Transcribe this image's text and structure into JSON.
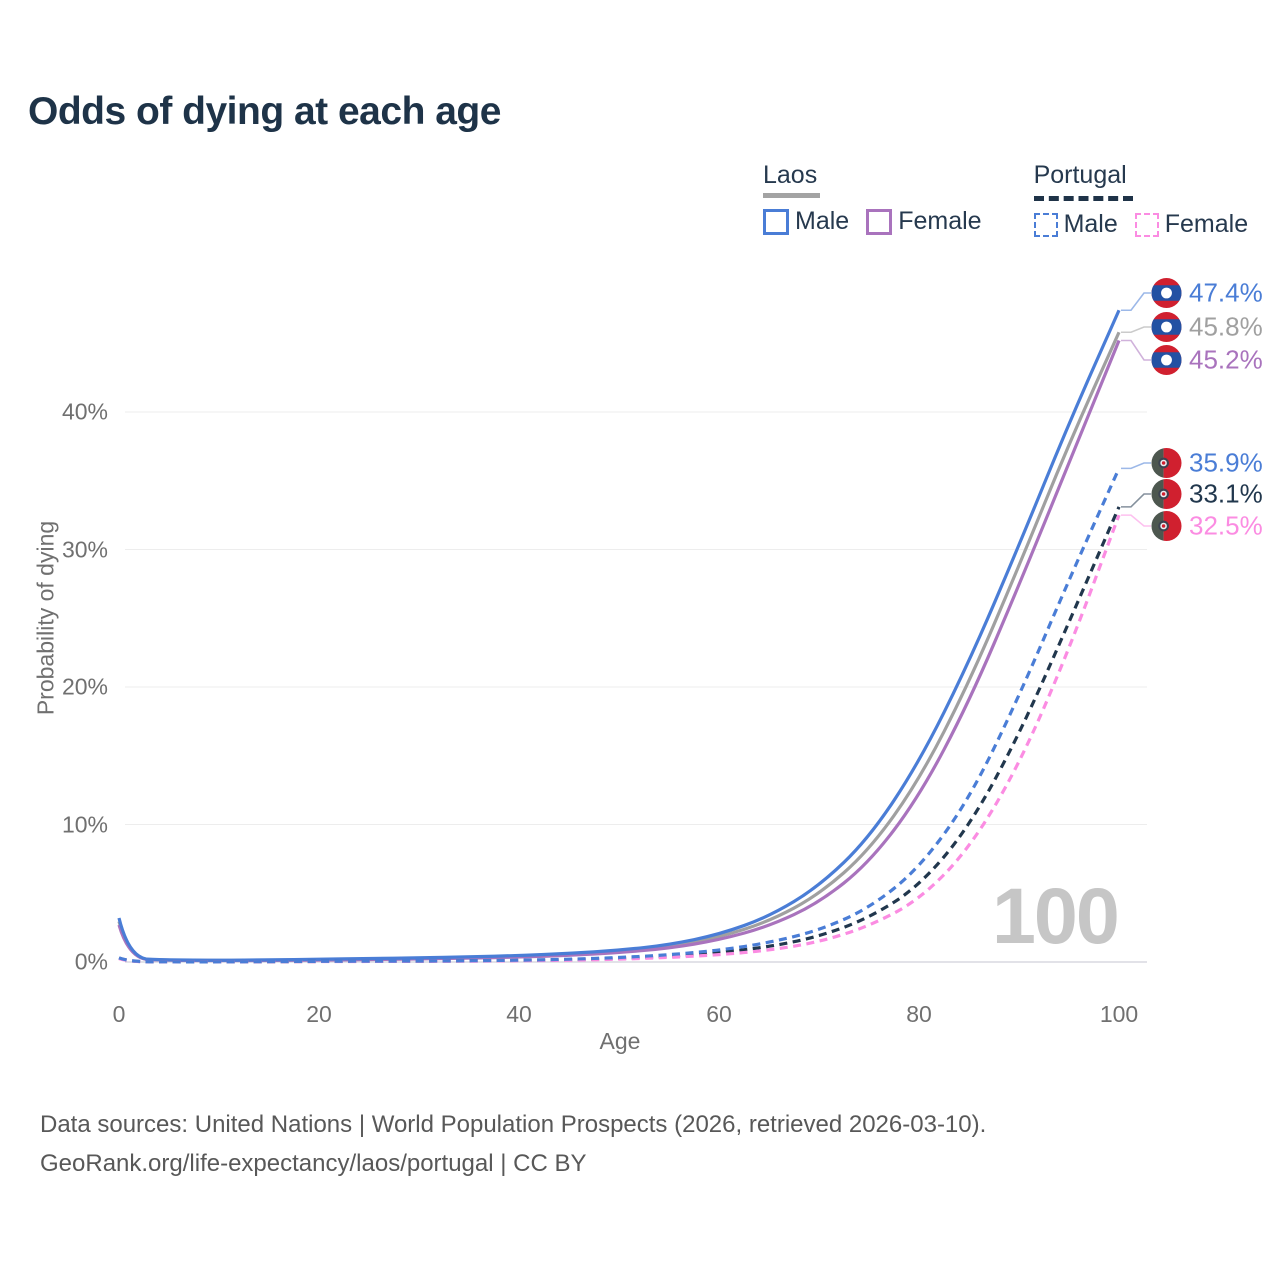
{
  "title": "Odds of dying at each age",
  "legend": {
    "groups": [
      {
        "name": "Laos",
        "line_style": "solid",
        "underline_color": "#a3a3a3",
        "items": [
          {
            "label": "Male",
            "color": "#4a7dd6",
            "style": "solid"
          },
          {
            "label": "Female",
            "color": "#a973bd",
            "style": "solid"
          }
        ]
      },
      {
        "name": "Portugal",
        "line_style": "dashed",
        "underline_color": "#1f3348",
        "items": [
          {
            "label": "Male",
            "color": "#4a7dd6",
            "style": "dashed"
          },
          {
            "label": "Female",
            "color": "#fb8ce2",
            "style": "dashed"
          }
        ]
      }
    ]
  },
  "chart_data": {
    "type": "line",
    "title": "Odds of dying at each age",
    "xlabel": "Age",
    "ylabel": "Probability of dying",
    "xlim": [
      0,
      100
    ],
    "ylim": [
      0,
      48
    ],
    "grid": "horizontal",
    "legend_position": "top-right",
    "watermark": "100",
    "x_ticks": [
      {
        "value": 0,
        "label": "0"
      },
      {
        "value": 20,
        "label": "20"
      },
      {
        "value": 40,
        "label": "40"
      },
      {
        "value": 60,
        "label": "60"
      },
      {
        "value": 80,
        "label": "80"
      },
      {
        "value": 100,
        "label": "100"
      }
    ],
    "y_ticks": [
      {
        "value": 0,
        "label": "0%"
      },
      {
        "value": 10,
        "label": "10%"
      },
      {
        "value": 20,
        "label": "20%"
      },
      {
        "value": 30,
        "label": "30%"
      },
      {
        "value": 40,
        "label": "40%"
      }
    ],
    "x": [
      0,
      1,
      5,
      10,
      15,
      20,
      25,
      30,
      35,
      40,
      45,
      50,
      55,
      60,
      65,
      70,
      75,
      80,
      85,
      90,
      95,
      100
    ],
    "series": [
      {
        "name": "Laos Male",
        "country": "Laos",
        "sex": "Male",
        "style": "solid",
        "color": "#4a7dd6",
        "end_label": "47.4%",
        "values": [
          3.2,
          0.25,
          0.15,
          0.12,
          0.15,
          0.2,
          0.25,
          0.3,
          0.37,
          0.47,
          0.62,
          0.85,
          1.25,
          2.0,
          3.3,
          5.5,
          9.0,
          14.5,
          21.8,
          30.3,
          39.2,
          47.4
        ]
      },
      {
        "name": "Laos Both sexes",
        "country": "Laos",
        "sex": "Both",
        "style": "solid",
        "color": "#a0a0a0",
        "end_label": "45.8%",
        "values": [
          2.95,
          0.24,
          0.13,
          0.11,
          0.13,
          0.17,
          0.21,
          0.26,
          0.32,
          0.41,
          0.55,
          0.77,
          1.12,
          1.8,
          2.95,
          4.9,
          8.1,
          13.2,
          20.3,
          28.8,
          37.7,
          45.8
        ]
      },
      {
        "name": "Laos Female",
        "country": "Laos",
        "sex": "Female",
        "style": "solid",
        "color": "#a973bd",
        "end_label": "45.2%",
        "values": [
          2.7,
          0.22,
          0.12,
          0.1,
          0.11,
          0.14,
          0.17,
          0.22,
          0.28,
          0.36,
          0.48,
          0.68,
          1.0,
          1.6,
          2.6,
          4.3,
          7.2,
          12.0,
          18.9,
          27.4,
          36.3,
          45.2
        ]
      },
      {
        "name": "Portugal Male",
        "country": "Portugal",
        "sex": "Male",
        "style": "dashed",
        "color": "#4a7dd6",
        "end_label": "35.9%",
        "values": [
          0.3,
          0.03,
          0.01,
          0.01,
          0.03,
          0.05,
          0.06,
          0.07,
          0.09,
          0.13,
          0.2,
          0.32,
          0.52,
          0.85,
          1.4,
          2.3,
          3.9,
          6.8,
          11.8,
          19.3,
          27.8,
          35.9
        ]
      },
      {
        "name": "Portugal Both sexes",
        "country": "Portugal",
        "sex": "Both",
        "style": "dashed",
        "color": "#21374d",
        "end_label": "33.1%",
        "values": [
          0.28,
          0.02,
          0.01,
          0.01,
          0.02,
          0.04,
          0.05,
          0.06,
          0.08,
          0.11,
          0.16,
          0.26,
          0.42,
          0.68,
          1.1,
          1.85,
          3.2,
          5.5,
          9.8,
          16.5,
          24.7,
          33.1
        ]
      },
      {
        "name": "Portugal Female",
        "country": "Portugal",
        "sex": "Female",
        "style": "dashed",
        "color": "#fb8ce2",
        "end_label": "32.5%",
        "values": [
          0.25,
          0.02,
          0.01,
          0.01,
          0.02,
          0.03,
          0.04,
          0.05,
          0.06,
          0.09,
          0.13,
          0.2,
          0.33,
          0.52,
          0.85,
          1.45,
          2.6,
          4.5,
          8.2,
          14.3,
          22.7,
          32.5
        ]
      }
    ]
  },
  "icons": {
    "laos_flag": "circular Laos flag (red-blue-red bands, white disc)",
    "portugal_flag": "circular Portugal flag (green hoist, red fly, armillary emblem)"
  },
  "colors": {
    "title": "#1e3348",
    "axis_text": "#707070",
    "gridline": "#ededed",
    "baseline": "#d8d8e0",
    "watermark": "#c6c6c6",
    "footer_text": "#585858",
    "laos_flag_red": "#d0202f",
    "laos_flag_blue": "#2351a3",
    "portugal_flag_green": "#4d574f",
    "portugal_flag_red": "#d0202f"
  },
  "footer": {
    "line1": "Data sources: United Nations | World Population Prospects (2026, retrieved 2026-03-10).",
    "line2": "GeoRank.org/life-expectancy/laos/portugal | CC BY"
  }
}
